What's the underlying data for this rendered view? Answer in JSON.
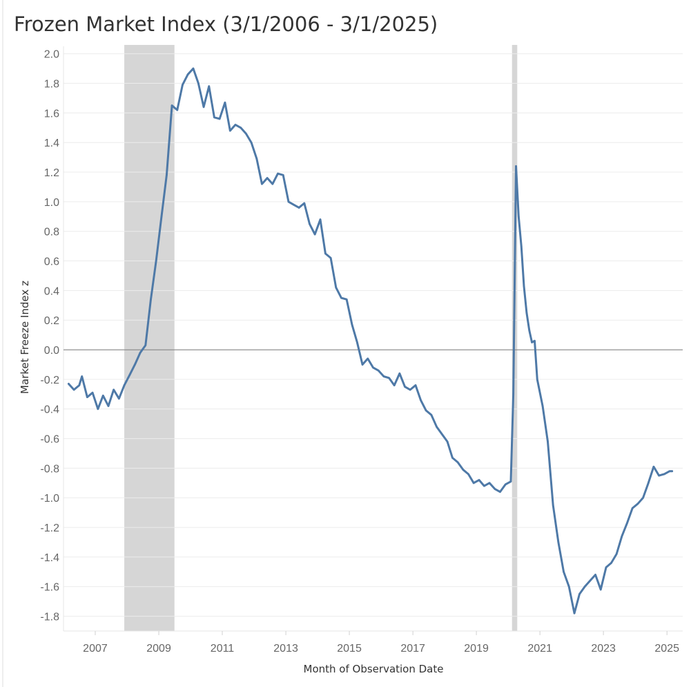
{
  "chart_data": {
    "type": "line",
    "title": "Frozen Market Index (3/1/2006 - 3/1/2025)",
    "xlabel": "Month of Observation Date",
    "ylabel": "Market Freeze Index z",
    "ylim": [
      -1.9,
      2.05
    ],
    "xlim": [
      "2006-01-01",
      "2025-07-01"
    ],
    "x_ticks": [
      "2007",
      "2009",
      "2011",
      "2013",
      "2015",
      "2017",
      "2019",
      "2021",
      "2023",
      "2025"
    ],
    "y_ticks": [
      2.0,
      1.8,
      1.6,
      1.4,
      1.2,
      1.0,
      0.8,
      0.6,
      0.4,
      0.2,
      0.0,
      -0.2,
      -0.4,
      -0.6,
      -0.8,
      -1.0,
      -1.2,
      -1.4,
      -1.6,
      -1.8
    ],
    "y_tick_labels": [
      "2.0",
      "1.8",
      "1.6",
      "1.4",
      "1.2",
      "1.0",
      "0.8",
      "0.6",
      "0.4",
      "0.2",
      "0.0",
      "-0.2",
      "-0.4",
      "-0.6",
      "-0.8",
      "-1.0",
      "-1.2",
      "-1.4",
      "-1.6",
      "-1.8"
    ],
    "grid": true,
    "reference_line_y": 0.0,
    "shaded_periods": [
      {
        "start": "2007-12-01",
        "end": "2009-06-30"
      },
      {
        "start": "2020-02-15",
        "end": "2020-04-15"
      }
    ],
    "colors": {
      "line": "#4e79a7",
      "shading": "#d6d6d6",
      "zero_line": "#777777",
      "grid": "#ececec"
    },
    "series": [
      {
        "x": [
          "2006-03",
          "2006-05",
          "2006-07",
          "2006-08",
          "2006-10",
          "2006-12",
          "2007-02",
          "2007-04",
          "2007-06",
          "2007-08",
          "2007-10",
          "2007-12",
          "2008-02",
          "2008-04",
          "2008-06",
          "2008-08",
          "2008-10",
          "2008-12",
          "2009-02",
          "2009-04",
          "2009-06",
          "2009-08",
          "2009-10",
          "2009-12",
          "2010-02",
          "2010-04",
          "2010-06",
          "2010-08",
          "2010-10",
          "2010-12",
          "2011-02",
          "2011-04",
          "2011-06",
          "2011-08",
          "2011-10",
          "2011-12",
          "2012-02",
          "2012-04",
          "2012-06",
          "2012-08",
          "2012-10",
          "2012-12",
          "2013-02",
          "2013-04",
          "2013-06",
          "2013-08",
          "2013-10",
          "2013-12",
          "2014-02",
          "2014-04",
          "2014-06",
          "2014-08",
          "2014-10",
          "2014-12",
          "2015-02",
          "2015-04",
          "2015-06",
          "2015-08",
          "2015-10",
          "2015-12",
          "2016-02",
          "2016-04",
          "2016-06",
          "2016-08",
          "2016-10",
          "2016-12",
          "2017-02",
          "2017-04",
          "2017-06",
          "2017-08",
          "2017-10",
          "2017-12",
          "2018-02",
          "2018-04",
          "2018-06",
          "2018-08",
          "2018-10",
          "2018-12",
          "2019-02",
          "2019-04",
          "2019-06",
          "2019-08",
          "2019-10",
          "2019-12",
          "2020-02",
          "2020-03",
          "2020-04",
          "2020-05",
          "2020-06",
          "2020-07",
          "2020-08",
          "2020-09",
          "2020-10",
          "2020-11",
          "2020-12",
          "2021-02",
          "2021-04",
          "2021-06",
          "2021-08",
          "2021-10",
          "2021-12",
          "2022-02",
          "2022-04",
          "2022-06",
          "2022-08",
          "2022-10",
          "2022-12",
          "2023-02",
          "2023-04",
          "2023-06",
          "2023-08",
          "2023-10",
          "2023-12",
          "2024-02",
          "2024-04",
          "2024-06",
          "2024-08",
          "2024-10",
          "2024-12",
          "2025-02",
          "2025-03"
        ],
        "values": [
          -0.23,
          -0.27,
          -0.24,
          -0.18,
          -0.32,
          -0.29,
          -0.4,
          -0.31,
          -0.38,
          -0.27,
          -0.33,
          -0.24,
          -0.17,
          -0.1,
          -0.02,
          0.03,
          0.34,
          0.6,
          0.9,
          1.18,
          1.65,
          1.62,
          1.79,
          1.86,
          1.9,
          1.8,
          1.64,
          1.78,
          1.57,
          1.56,
          1.67,
          1.48,
          1.52,
          1.5,
          1.46,
          1.4,
          1.29,
          1.12,
          1.16,
          1.12,
          1.19,
          1.18,
          1.0,
          0.98,
          0.96,
          0.99,
          0.85,
          0.78,
          0.88,
          0.65,
          0.62,
          0.42,
          0.35,
          0.34,
          0.17,
          0.05,
          -0.1,
          -0.06,
          -0.12,
          -0.14,
          -0.18,
          -0.19,
          -0.24,
          -0.16,
          -0.25,
          -0.27,
          -0.24,
          -0.34,
          -0.41,
          -0.44,
          -0.52,
          -0.57,
          -0.62,
          -0.73,
          -0.76,
          -0.81,
          -0.84,
          -0.9,
          -0.88,
          -0.92,
          -0.9,
          -0.94,
          -0.96,
          -0.91,
          -0.89,
          -0.3,
          1.24,
          0.9,
          0.7,
          0.43,
          0.25,
          0.13,
          0.05,
          0.06,
          -0.2,
          -0.38,
          -0.62,
          -1.05,
          -1.3,
          -1.5,
          -1.6,
          -1.78,
          -1.65,
          -1.6,
          -1.56,
          -1.52,
          -1.62,
          -1.47,
          -1.44,
          -1.38,
          -1.26,
          -1.17,
          -1.07,
          -1.04,
          -1.0,
          -0.9,
          -0.79,
          -0.85,
          -0.84,
          -0.82,
          -0.82
        ]
      }
    ]
  }
}
